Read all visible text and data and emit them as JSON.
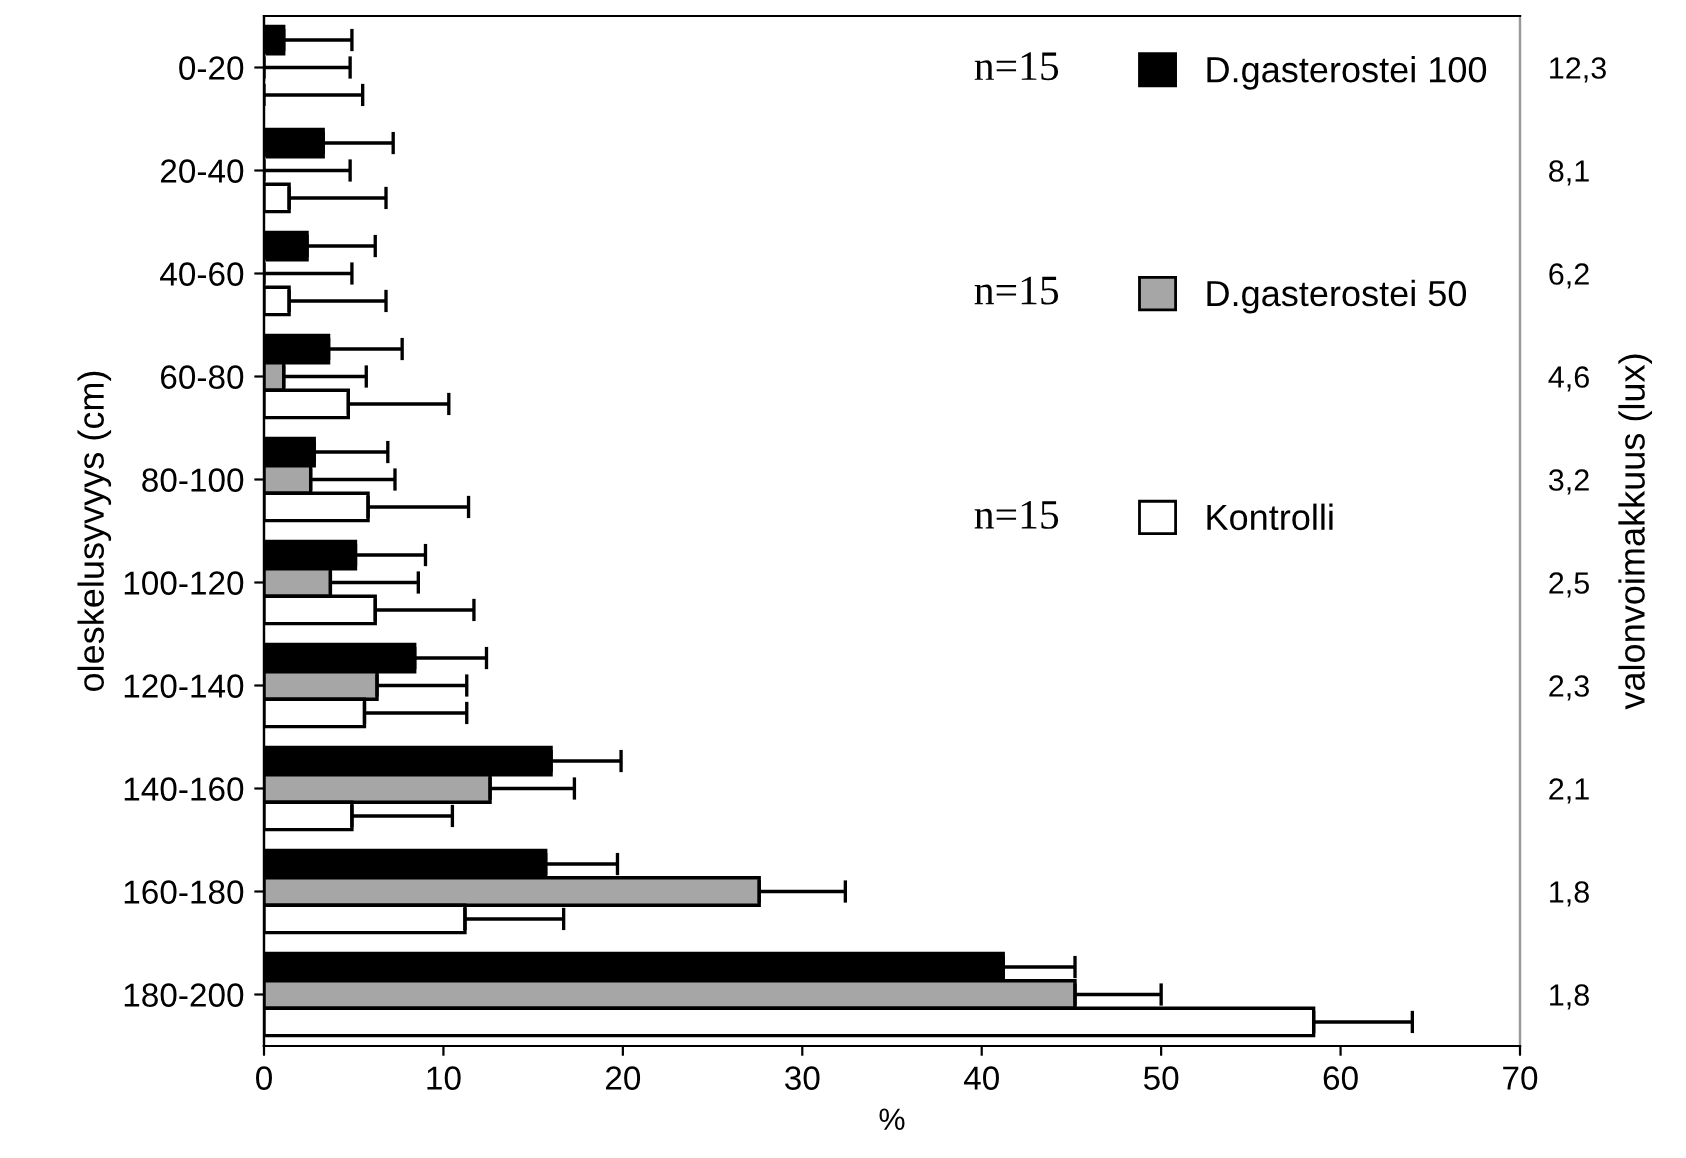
{
  "chart_data": {
    "type": "bar",
    "orientation": "horizontal",
    "xlabel": "%",
    "ylabel": "oleskelusyvyys (cm)",
    "y2label": "valonvoimakkuus (lux)",
    "categories": [
      "0-20",
      "20-40",
      "40-60",
      "60-80",
      "80-100",
      "100-120",
      "120-140",
      "140-160",
      "160-180",
      "180-200"
    ],
    "y2_categories": [
      "12,3",
      "8,1",
      "6,2",
      "4,6",
      "3,2",
      "2,5",
      "2,3",
      "2,1",
      "1,8",
      "1,8"
    ],
    "series": [
      {
        "name": "D.gasterostei 100",
        "color": "#000000",
        "values": [
          1.1,
          3.3,
          2.4,
          3.6,
          2.8,
          5.1,
          8.4,
          16.0,
          15.7,
          41.2
        ],
        "errors": [
          [
            1.1,
            4.9
          ],
          [
            3.3,
            7.2
          ],
          [
            2.4,
            6.2
          ],
          [
            3.6,
            7.7
          ],
          [
            2.8,
            6.9
          ],
          [
            5.1,
            9.0
          ],
          [
            8.4,
            12.4
          ],
          [
            16.0,
            19.9
          ],
          [
            15.7,
            19.7
          ],
          [
            41.2,
            45.2
          ]
        ]
      },
      {
        "name": "D.gasterostei 50",
        "color": "#a6a6a6",
        "values": [
          0,
          0,
          0,
          1.1,
          2.6,
          3.7,
          6.3,
          12.6,
          27.6,
          45.2
        ],
        "errors": [
          [
            0,
            4.8
          ],
          [
            0,
            4.8
          ],
          [
            0,
            4.9
          ],
          [
            1.1,
            5.7
          ],
          [
            2.6,
            7.3
          ],
          [
            3.7,
            8.6
          ],
          [
            6.3,
            11.3
          ],
          [
            12.6,
            17.3
          ],
          [
            27.6,
            32.4
          ],
          [
            45.2,
            50.0
          ]
        ]
      },
      {
        "name": "Kontrolli",
        "color": "#ffffff",
        "values": [
          0,
          1.4,
          1.4,
          4.7,
          5.8,
          6.2,
          5.6,
          4.9,
          11.2,
          58.5
        ],
        "errors": [
          [
            0,
            5.5
          ],
          [
            1.4,
            6.8
          ],
          [
            1.4,
            6.8
          ],
          [
            4.7,
            10.3
          ],
          [
            5.8,
            11.4
          ],
          [
            6.2,
            11.7
          ],
          [
            5.6,
            11.3
          ],
          [
            4.9,
            10.5
          ],
          [
            11.2,
            16.7
          ],
          [
            58.5,
            64.0
          ]
        ]
      }
    ],
    "annotations": [
      "n=15",
      "n=15",
      "n=15"
    ],
    "xlim": [
      0,
      70
    ],
    "xticks": [
      0,
      10,
      20,
      30,
      40,
      50,
      60,
      70
    ],
    "grid": false,
    "legend": "top right"
  }
}
